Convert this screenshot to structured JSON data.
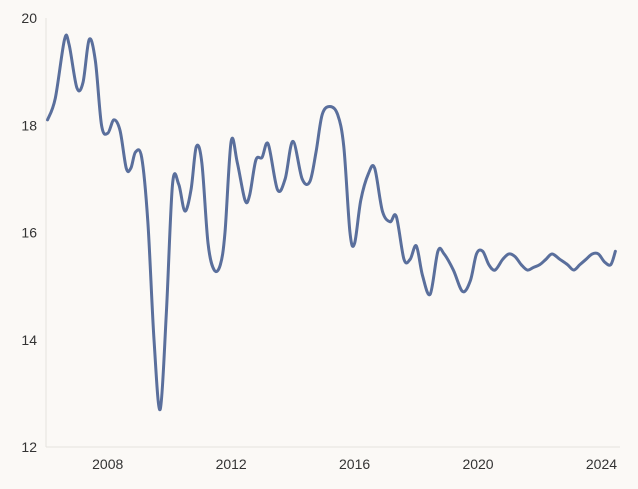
{
  "chart_data": {
    "type": "line",
    "title": "",
    "xlabel": "",
    "ylabel": "",
    "x_ticks": [
      "2008",
      "2012",
      "2016",
      "2020",
      "2024"
    ],
    "y_ticks": [
      "12",
      "14",
      "16",
      "18",
      "20"
    ],
    "xlim": [
      2006.0,
      2024.6
    ],
    "ylim": [
      12,
      20
    ],
    "grid": false,
    "legend": "none",
    "colors": {
      "line": "#5a6f9c",
      "background": "#fbf9f6",
      "axis": "#e6e3de",
      "text": "#333333"
    },
    "series": [
      {
        "x": [
          2006.05,
          2006.3,
          2006.6,
          2006.75,
          2007.0,
          2007.2,
          2007.4,
          2007.6,
          2007.8,
          2008.0,
          2008.2,
          2008.4,
          2008.6,
          2008.75,
          2008.9,
          2009.1,
          2009.3,
          2009.5,
          2009.7,
          2009.9,
          2010.1,
          2010.3,
          2010.5,
          2010.7,
          2010.87,
          2011.05,
          2011.25,
          2011.45,
          2011.65,
          2011.8,
          2012.0,
          2012.2,
          2012.45,
          2012.6,
          2012.8,
          2013.0,
          2013.2,
          2013.5,
          2013.75,
          2014.0,
          2014.3,
          2014.55,
          2014.75,
          2014.95,
          2015.2,
          2015.45,
          2015.65,
          2015.85,
          2016.0,
          2016.2,
          2016.45,
          2016.65,
          2016.9,
          2017.15,
          2017.35,
          2017.6,
          2017.8,
          2018.0,
          2018.2,
          2018.45,
          2018.7,
          2018.9,
          2019.2,
          2019.5,
          2019.75,
          2019.95,
          2020.15,
          2020.35,
          2020.55,
          2020.8,
          2021.0,
          2021.2,
          2021.4,
          2021.6,
          2021.8,
          2022.0,
          2022.2,
          2022.4,
          2022.65,
          2022.9,
          2023.1,
          2023.3,
          2023.5,
          2023.7,
          2023.9,
          2024.1,
          2024.3,
          2024.45
        ],
        "y": [
          18.1,
          18.5,
          19.6,
          19.5,
          18.7,
          18.8,
          19.6,
          19.2,
          18.0,
          17.85,
          18.1,
          17.9,
          17.2,
          17.2,
          17.5,
          17.4,
          16.2,
          14.0,
          12.7,
          14.5,
          16.9,
          16.9,
          16.4,
          16.8,
          17.6,
          17.3,
          15.8,
          15.3,
          15.4,
          16.0,
          17.7,
          17.3,
          16.6,
          16.7,
          17.35,
          17.4,
          17.65,
          16.8,
          17.0,
          17.7,
          17.0,
          16.95,
          17.5,
          18.2,
          18.35,
          18.2,
          17.6,
          16.0,
          15.8,
          16.6,
          17.1,
          17.2,
          16.4,
          16.2,
          16.3,
          15.5,
          15.5,
          15.75,
          15.2,
          14.85,
          15.65,
          15.6,
          15.3,
          14.9,
          15.1,
          15.6,
          15.65,
          15.4,
          15.3,
          15.5,
          15.6,
          15.55,
          15.4,
          15.3,
          15.35,
          15.4,
          15.5,
          15.6,
          15.5,
          15.4,
          15.3,
          15.4,
          15.5,
          15.6,
          15.6,
          15.45,
          15.4,
          15.65
        ]
      }
    ]
  }
}
